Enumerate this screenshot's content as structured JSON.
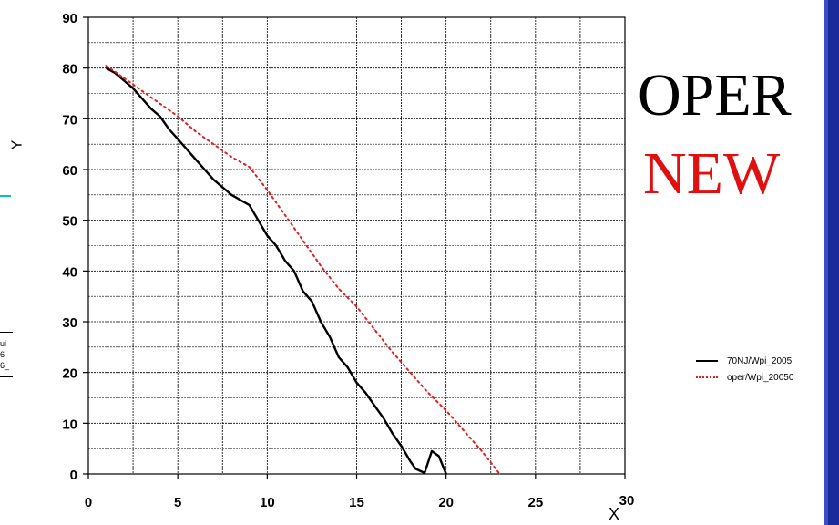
{
  "chart_data": {
    "type": "line",
    "title": "",
    "xlabel": "X",
    "ylabel": "Y",
    "xlim": [
      0,
      30
    ],
    "ylim": [
      0,
      90
    ],
    "x_ticks": [
      "0",
      "5",
      "10",
      "15",
      "20",
      "25",
      "30"
    ],
    "y_ticks": [
      "0",
      "10",
      "20",
      "30",
      "40",
      "50",
      "60",
      "70",
      "80",
      "90"
    ],
    "grid": true,
    "legend_position": "right",
    "series": [
      {
        "name": "70NJ/Wpi_2005",
        "color": "#000000",
        "style": "solid",
        "points": [
          [
            1.0,
            80.0
          ],
          [
            1.5,
            79.0
          ],
          [
            2.0,
            77.5
          ],
          [
            2.5,
            76.0
          ],
          [
            3.0,
            74.0
          ],
          [
            3.5,
            72.0
          ],
          [
            4.0,
            70.5
          ],
          [
            4.5,
            68.0
          ],
          [
            5.0,
            66.0
          ],
          [
            5.5,
            64.0
          ],
          [
            6.0,
            62.0
          ],
          [
            6.5,
            60.0
          ],
          [
            7.0,
            58.0
          ],
          [
            7.5,
            56.5
          ],
          [
            8.0,
            55.0
          ],
          [
            8.5,
            54.0
          ],
          [
            9.0,
            53.0
          ],
          [
            9.5,
            50.0
          ],
          [
            10.0,
            47.0
          ],
          [
            10.5,
            45.0
          ],
          [
            11.0,
            42.0
          ],
          [
            11.5,
            40.0
          ],
          [
            12.0,
            36.0
          ],
          [
            12.5,
            34.0
          ],
          [
            13.0,
            30.0
          ],
          [
            13.5,
            27.0
          ],
          [
            14.0,
            23.0
          ],
          [
            14.5,
            21.0
          ],
          [
            15.0,
            18.0
          ],
          [
            15.5,
            16.0
          ],
          [
            16.0,
            13.5
          ],
          [
            16.5,
            11.0
          ],
          [
            17.0,
            8.0
          ],
          [
            17.5,
            5.5
          ],
          [
            18.0,
            2.5
          ],
          [
            18.3,
            1.0
          ],
          [
            18.8,
            0.2
          ],
          [
            19.2,
            4.5
          ],
          [
            19.6,
            3.5
          ],
          [
            20.0,
            0.0
          ]
        ]
      },
      {
        "name": "oper/Wpi_20050",
        "color": "#e02020",
        "style": "dotted",
        "points": [
          [
            1.0,
            80.5
          ],
          [
            2.0,
            78.0
          ],
          [
            3.0,
            75.5
          ],
          [
            4.0,
            73.0
          ],
          [
            5.0,
            70.5
          ],
          [
            6.0,
            67.5
          ],
          [
            7.0,
            65.0
          ],
          [
            8.0,
            62.5
          ],
          [
            9.0,
            60.5
          ],
          [
            10.0,
            56.0
          ],
          [
            11.0,
            51.0
          ],
          [
            12.0,
            46.0
          ],
          [
            13.0,
            41.0
          ],
          [
            14.0,
            36.5
          ],
          [
            15.0,
            33.0
          ],
          [
            16.0,
            28.5
          ],
          [
            17.0,
            24.0
          ],
          [
            18.0,
            20.0
          ],
          [
            19.0,
            16.0
          ],
          [
            20.0,
            12.5
          ],
          [
            21.0,
            8.5
          ],
          [
            22.0,
            4.5
          ],
          [
            23.0,
            0.0
          ]
        ]
      }
    ]
  },
  "overlay": {
    "oper_text": "OPER",
    "oper_color": "#000000",
    "new_text": "NEW",
    "new_color": "#e01010"
  },
  "left_legend_fragments": [
    "ui",
    "6",
    "6_"
  ]
}
